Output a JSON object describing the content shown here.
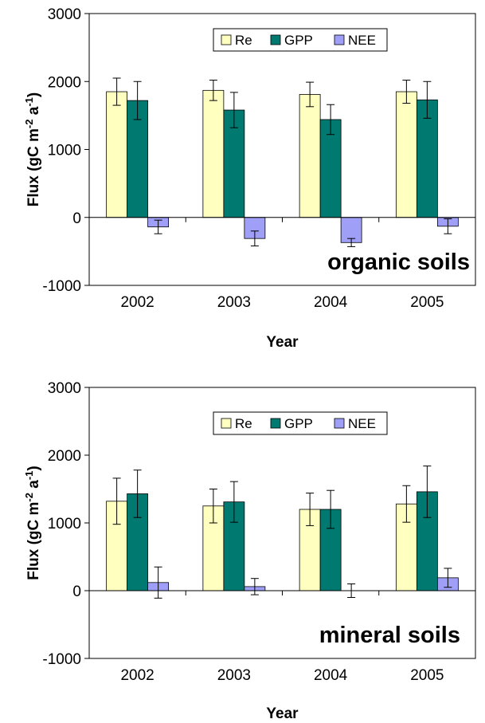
{
  "colors": {
    "Re": "#ffffc0",
    "GPP": "#007a70",
    "NEE": "#9f9ff7",
    "axis": "#000000"
  },
  "chart_data": [
    {
      "type": "bar",
      "annotation": "organic soils",
      "xlabel": "Year",
      "ylabel": "Flux (gC m",
      "ylabel_sup1": "-2",
      "ylabel_mid": " a",
      "ylabel_sup2": "-1",
      "ylabel_end": ")",
      "ylim": [
        -1000,
        3000
      ],
      "yticks": [
        -1000,
        0,
        1000,
        2000,
        3000
      ],
      "categories": [
        "2002",
        "2003",
        "2004",
        "2005"
      ],
      "legend_position": "top-center",
      "series": [
        {
          "name": "Re",
          "values": [
            1850,
            1870,
            1810,
            1850
          ],
          "errors": [
            200,
            150,
            180,
            170
          ]
        },
        {
          "name": "GPP",
          "values": [
            1720,
            1580,
            1440,
            1730
          ],
          "errors": [
            280,
            260,
            220,
            270
          ]
        },
        {
          "name": "NEE",
          "values": [
            -140,
            -310,
            -370,
            -130
          ],
          "errors": [
            100,
            110,
            60,
            110
          ]
        }
      ]
    },
    {
      "type": "bar",
      "annotation": "mineral soils",
      "xlabel": "Year",
      "ylabel": "Flux (gC m",
      "ylabel_sup1": "-2",
      "ylabel_mid": " a",
      "ylabel_sup2": "-1",
      "ylabel_end": ")",
      "ylim": [
        -1000,
        3000
      ],
      "yticks": [
        -1000,
        0,
        1000,
        2000,
        3000
      ],
      "categories": [
        "2002",
        "2003",
        "2004",
        "2005"
      ],
      "legend_position": "top-center",
      "series": [
        {
          "name": "Re",
          "values": [
            1320,
            1250,
            1200,
            1280
          ],
          "errors": [
            340,
            250,
            240,
            270
          ]
        },
        {
          "name": "GPP",
          "values": [
            1430,
            1310,
            1200,
            1460
          ],
          "errors": [
            350,
            300,
            280,
            380
          ]
        },
        {
          "name": "NEE",
          "values": [
            120,
            60,
            0,
            190
          ],
          "errors": [
            230,
            120,
            100,
            140
          ]
        }
      ]
    }
  ]
}
